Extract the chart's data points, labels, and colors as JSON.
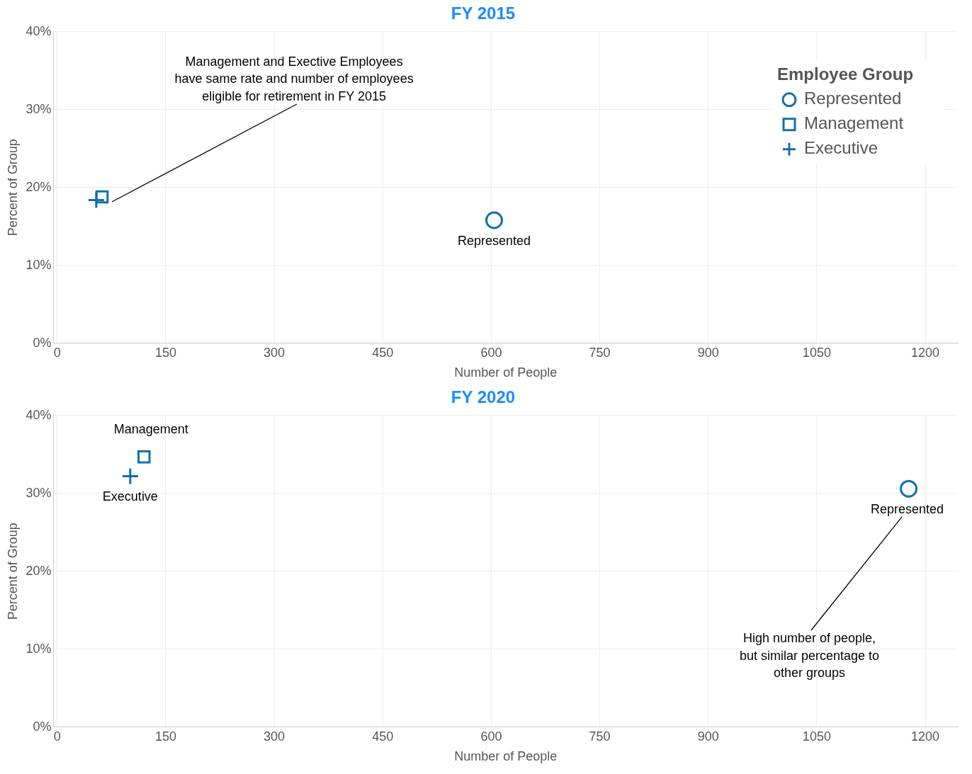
{
  "chart_data": [
    {
      "type": "scatter",
      "title": "FY 2015",
      "xlabel": "Number of People",
      "ylabel": "Percent of Group",
      "legend_title": "Employee Group",
      "legend": "top right",
      "grid": true,
      "xlim": [
        -5,
        1245
      ],
      "xticks": [
        0,
        150,
        300,
        450,
        600,
        750,
        900,
        1050,
        1200
      ],
      "ylim": [
        0,
        40
      ],
      "yticks": [
        {
          "value": 0,
          "label": "0%"
        },
        {
          "value": 10,
          "label": "10%"
        },
        {
          "value": 20,
          "label": "20%"
        },
        {
          "value": 30,
          "label": "30%"
        },
        {
          "value": 40,
          "label": "40%"
        }
      ],
      "series": [
        {
          "name": "Represented",
          "color": "#1170aa",
          "marker": "circle",
          "x": [
            604
          ],
          "values": [
            15.8
          ]
        },
        {
          "name": "Management",
          "color": "#1170aa",
          "marker": "square",
          "x": [
            62
          ],
          "values": [
            18.8
          ]
        },
        {
          "name": "Executive",
          "color": "#1170aa",
          "marker": "cross",
          "x": [
            54
          ],
          "values": [
            18.4
          ]
        }
      ],
      "annotations": [
        "Management and Exective Employees\nhave same rate and number of employees\neligible for retirement in FY 2015"
      ]
    },
    {
      "type": "scatter",
      "title": "FY 2020",
      "xlabel": "Number of People",
      "ylabel": "Percent of Group",
      "grid": true,
      "xlim": [
        -5,
        1245
      ],
      "xticks": [
        0,
        150,
        300,
        450,
        600,
        750,
        900,
        1050,
        1200
      ],
      "ylim": [
        0,
        40
      ],
      "yticks": [
        {
          "value": 0,
          "label": "0%"
        },
        {
          "value": 10,
          "label": "10%"
        },
        {
          "value": 20,
          "label": "20%"
        },
        {
          "value": 30,
          "label": "30%"
        },
        {
          "value": 40,
          "label": "40%"
        }
      ],
      "series": [
        {
          "name": "Represented",
          "color": "#1170aa",
          "marker": "circle",
          "x": [
            1177
          ],
          "values": [
            30.6
          ]
        },
        {
          "name": "Management",
          "color": "#1170aa",
          "marker": "square",
          "x": [
            120
          ],
          "values": [
            34.7
          ]
        },
        {
          "name": "Executive",
          "color": "#1170aa",
          "marker": "cross",
          "x": [
            101
          ],
          "values": [
            32.2
          ]
        }
      ],
      "annotations": [
        "High number of people,\nbut similar percentage to\nother groups"
      ]
    }
  ]
}
